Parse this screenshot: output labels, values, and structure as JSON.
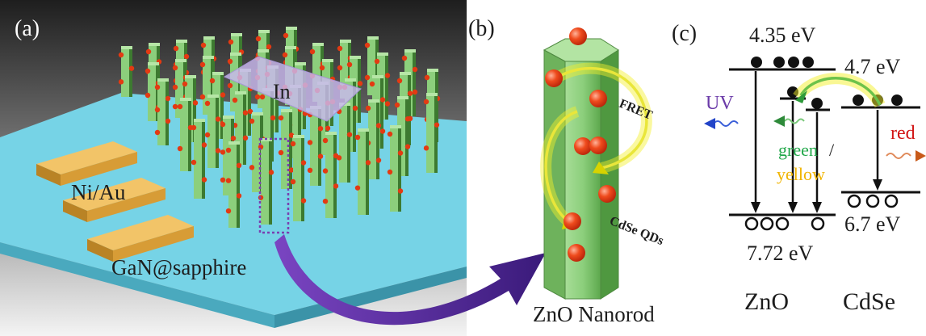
{
  "panels": {
    "a": {
      "label": "(a)",
      "contact_label": "Ni/Au",
      "substrate_label": "GaN@sapphire",
      "electrode_label": "In"
    },
    "b": {
      "label": "(b)",
      "fret_label": "FRET",
      "qd_label": "CdSe QDs",
      "caption": "ZnO Nanorod"
    },
    "c": {
      "label": "(c)",
      "zno_cb": "4.35 eV",
      "cdse_cb": "4.7 eV",
      "zno_vb": "7.72 eV",
      "cdse_vb": "6.7 eV",
      "uv_label": "UV",
      "green_label": "green",
      "slash": "/",
      "yellow_label": "yellow",
      "red_label": "red",
      "zno_label": "ZnO",
      "cdse_label": "CdSe"
    }
  },
  "colors": {
    "rod_green": "#8ccf7c",
    "qd_red": "#e33a12",
    "substrate_cyan": "#76d3e6",
    "contact_gold": "#e7b24c",
    "electrode_lavender": "#c9b8ee",
    "arrow_purple": "#5b2a9a",
    "uv_purple": "#6a3aa8",
    "green_text": "#22a84a",
    "yellow_text": "#f0b400",
    "red_text": "#d21414",
    "glow_yellow": "#f3ef2a"
  }
}
